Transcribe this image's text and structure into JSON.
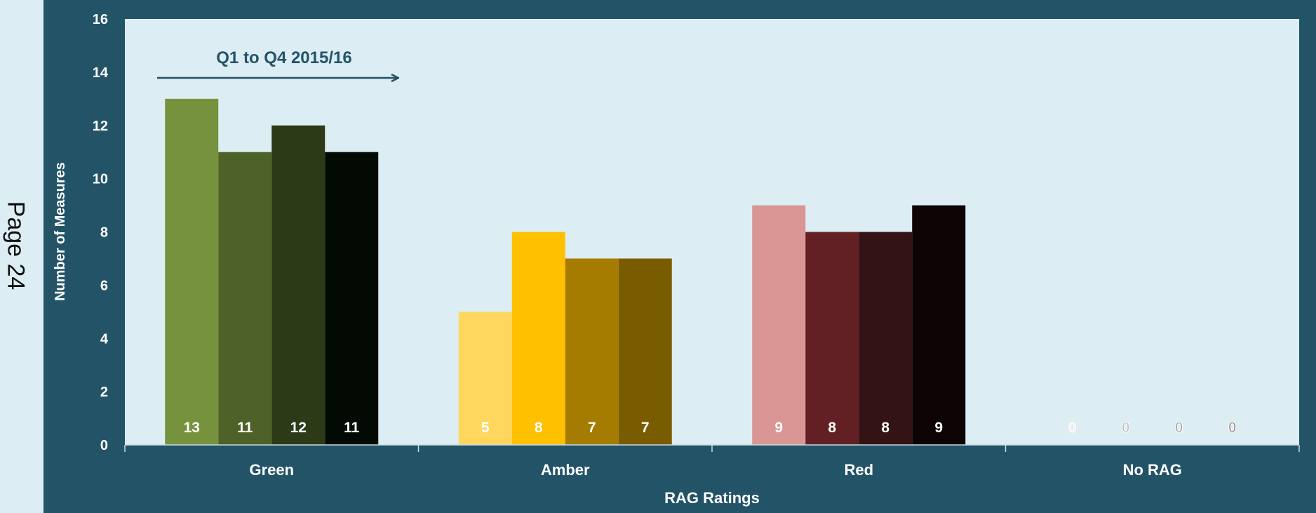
{
  "page_label": "Page 24",
  "chart_data": {
    "type": "bar",
    "title": "",
    "annotation": "Q1 to Q4 2015/16",
    "categories": [
      "Green",
      "Amber",
      "Red",
      "No RAG"
    ],
    "xlabel": "RAG Ratings",
    "ylabel": "Number of Measures",
    "ylim": [
      0,
      16
    ],
    "yticks": [
      0,
      2,
      4,
      6,
      8,
      10,
      12,
      14,
      16
    ],
    "grid": false,
    "legend": "none",
    "series": [
      {
        "values": [
          13,
          5,
          9,
          0
        ]
      },
      {
        "values": [
          11,
          8,
          8,
          0
        ]
      },
      {
        "values": [
          12,
          7,
          8,
          0
        ]
      },
      {
        "values": [
          11,
          7,
          9,
          0
        ]
      }
    ],
    "colors": {
      "Green": [
        "#77923c",
        "#4e6128",
        "#2c3a18",
        "#030a03"
      ],
      "Amber": [
        "#ffd75e",
        "#ffc000",
        "#a67c00",
        "#7a5c00"
      ],
      "Red": [
        "#d99694",
        "#632024",
        "#331315",
        "#0d0204"
      ],
      "No RAG": [
        "#f2f2f2",
        "#bfbfbf",
        "#a6a6a6",
        "#8c8c8c"
      ]
    },
    "plot_background": "#dcedf3",
    "frame_color": "#235367"
  }
}
